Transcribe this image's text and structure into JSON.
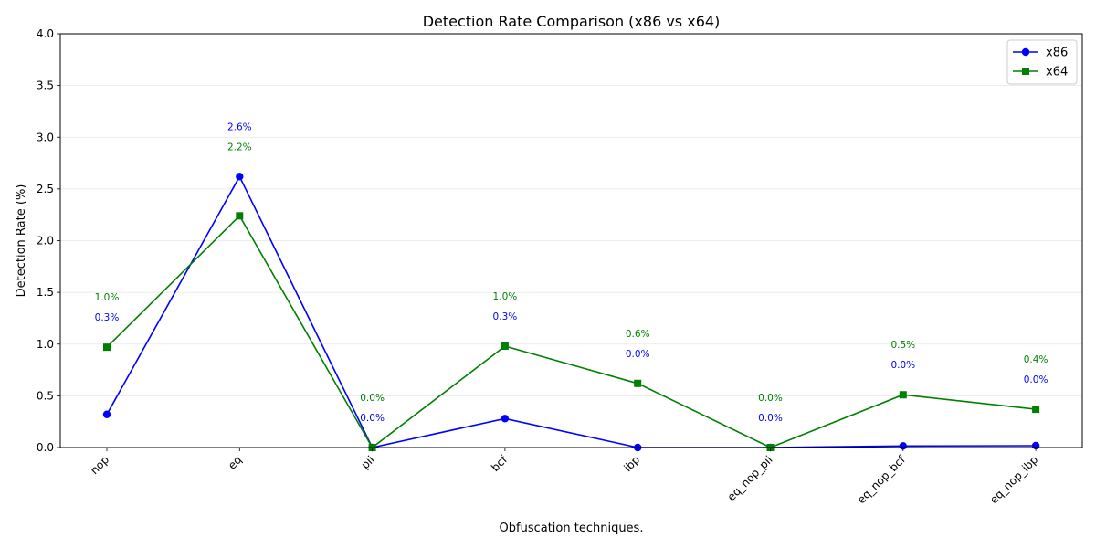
{
  "chart_data": {
    "type": "line",
    "title": "Detection Rate Comparison (x86 vs x64)",
    "xlabel": "Obfuscation techniques.",
    "ylabel": "Detection Rate (%)",
    "ylim": [
      0,
      4
    ],
    "yticks": [
      "0.0",
      "0.5",
      "1.0",
      "1.5",
      "2.0",
      "2.5",
      "3.0",
      "3.5",
      "4.0"
    ],
    "grid": "horizontal",
    "legend_position": "top-right",
    "categories": [
      "nop",
      "eq",
      "pii",
      "bcf",
      "ibp",
      "eq_nop_pii",
      "eq_nop_bcf",
      "eq_nop_ibp"
    ],
    "series": [
      {
        "name": "x86",
        "color": "#0000ff",
        "marker": "circle",
        "values": [
          0.32,
          2.62,
          0.0,
          0.28,
          0.0,
          0.0,
          0.015,
          0.018
        ],
        "labels": [
          "0.3%",
          "2.6%",
          "0.0%",
          "0.3%",
          "0.0%",
          "0.0%",
          "0.0%",
          "0.0%"
        ]
      },
      {
        "name": "x64",
        "color": "#008000",
        "marker": "square",
        "values": [
          0.97,
          2.24,
          0.0,
          0.98,
          0.62,
          0.0,
          0.51,
          0.37
        ],
        "labels": [
          "1.0%",
          "2.2%",
          "0.0%",
          "1.0%",
          "0.6%",
          "0.0%",
          "0.5%",
          "0.4%"
        ]
      }
    ]
  }
}
